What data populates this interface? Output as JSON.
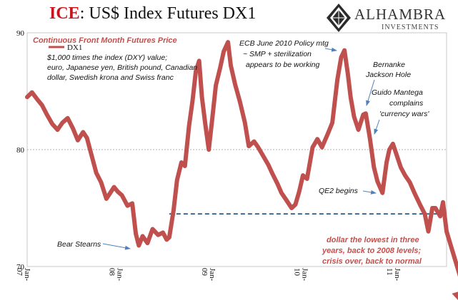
{
  "header": {
    "title_accent": "ICE",
    "title_rest": ": US$ Index Futures DX1",
    "logo_name": "ALHAMBRA",
    "logo_sub": "INVESTMENTS"
  },
  "colors": {
    "series": "#c0504d",
    "accent_red": "#c8141c",
    "reference_line": "#1f4e79"
  },
  "chart_data": {
    "type": "line",
    "subtitle": "Continuous Front Month Futures Price",
    "description": [
      "$1,000 times the index (DXY) value;",
      "euro, Japanese yen, British pound, Canadian",
      "dollar, Swedish krona and Swiss franc"
    ],
    "legend": "DX1",
    "ylim": [
      70,
      90
    ],
    "yticks": [
      70,
      80,
      90
    ],
    "x_range": [
      "2007-01-01",
      "2011-07-15"
    ],
    "xticks": [
      "Jan-07",
      "Jan-08",
      "Jan-09",
      "Jan-10",
      "Jan-11"
    ],
    "grid_y": [
      80
    ],
    "series": [
      {
        "name": "DX1",
        "x": [
          "2007-01-01",
          "2007-01-20",
          "2007-02-10",
          "2007-03-01",
          "2007-03-20",
          "2007-04-10",
          "2007-05-01",
          "2007-05-20",
          "2007-06-10",
          "2007-07-01",
          "2007-07-20",
          "2007-08-10",
          "2007-08-25",
          "2007-09-15",
          "2007-10-01",
          "2007-10-20",
          "2007-11-10",
          "2007-11-25",
          "2007-12-10",
          "2007-12-25",
          "2008-01-10",
          "2008-02-01",
          "2008-02-20",
          "2008-03-05",
          "2008-03-17",
          "2008-04-01",
          "2008-04-20",
          "2008-05-10",
          "2008-06-01",
          "2008-06-20",
          "2008-07-05",
          "2008-07-15",
          "2008-08-01",
          "2008-08-15",
          "2008-09-01",
          "2008-09-15",
          "2008-10-01",
          "2008-10-15",
          "2008-10-28",
          "2008-11-10",
          "2008-11-21",
          "2008-12-05",
          "2008-12-18",
          "2008-12-31",
          "2009-01-15",
          "2009-02-01",
          "2009-02-15",
          "2009-03-04",
          "2009-03-15",
          "2009-04-01",
          "2009-04-20",
          "2009-05-10",
          "2009-05-25",
          "2009-06-15",
          "2009-07-01",
          "2009-07-20",
          "2009-08-10",
          "2009-08-25",
          "2009-09-15",
          "2009-10-01",
          "2009-10-20",
          "2009-11-10",
          "2009-11-25",
          "2009-12-10",
          "2009-12-25",
          "2010-01-10",
          "2010-02-01",
          "2010-02-20",
          "2010-03-10",
          "2010-04-01",
          "2010-04-20",
          "2010-05-10",
          "2010-05-25",
          "2010-06-07",
          "2010-06-20",
          "2010-07-01",
          "2010-07-15",
          "2010-08-01",
          "2010-08-20",
          "2010-08-30",
          "2010-09-15",
          "2010-10-01",
          "2010-10-15",
          "2010-11-04",
          "2010-11-20",
          "2010-12-01",
          "2010-12-15",
          "2011-01-01",
          "2011-01-15",
          "2011-02-01",
          "2011-02-20",
          "2011-03-10",
          "2011-04-01",
          "2011-04-20",
          "2011-05-04",
          "2011-05-20",
          "2011-06-01",
          "2011-06-20",
          "2011-07-01",
          "2011-07-15"
        ],
        "y": [
          84.5,
          84.9,
          84.3,
          83.8,
          83.0,
          82.2,
          81.7,
          82.3,
          82.7,
          81.8,
          80.8,
          81.5,
          81.0,
          79.3,
          78.0,
          77.2,
          75.8,
          76.3,
          76.8,
          76.4,
          76.1,
          75.2,
          75.4,
          72.8,
          71.8,
          72.6,
          72.0,
          73.2,
          72.7,
          72.9,
          72.3,
          72.5,
          74.8,
          77.4,
          78.9,
          78.6,
          82.0,
          84.2,
          86.7,
          87.6,
          84.5,
          82.1,
          80.0,
          82.5,
          85.5,
          87.0,
          88.4,
          89.2,
          87.2,
          85.6,
          84.1,
          82.3,
          80.3,
          80.7,
          80.2,
          79.5,
          78.7,
          78.0,
          77.1,
          76.3,
          75.7,
          75.0,
          75.3,
          76.4,
          77.8,
          77.5,
          80.2,
          80.9,
          80.2,
          81.3,
          82.3,
          86.0,
          87.9,
          88.5,
          86.5,
          84.5,
          82.8,
          81.7,
          83.0,
          83.1,
          81.0,
          78.5,
          77.3,
          76.3,
          78.9,
          80.0,
          80.5,
          79.4,
          78.5,
          77.8,
          77.2,
          76.3,
          75.3,
          74.5,
          73.0,
          75.0,
          75.0,
          74.3,
          75.5,
          73.0
        ]
      }
    ],
    "reference_line": {
      "value": 74.5,
      "x_start": "2008-07-15",
      "x_end": "2011-07-05"
    },
    "trend_arrow": {
      "x": [
        "2011-07-15",
        "2011-10-12"
      ],
      "y": [
        73.0,
        66.6
      ]
    },
    "annotations": [
      {
        "lines": [
          "ECB June 2010 Policy mtg",
          "~ SMP + sterilization",
          "appears to be working"
        ],
        "x": "2010-06-07",
        "y": 88.5
      },
      {
        "lines": [
          "Bernanke",
          "Jackson Hole"
        ],
        "x": "2010-08-30",
        "y": 83.1
      },
      {
        "lines": [
          "Guido Mantega",
          "complains",
          "'currency wars'"
        ],
        "x": "2010-09-27",
        "y": 81.8
      },
      {
        "lines": [
          "QE2 begins"
        ],
        "x": "2010-11-04",
        "y": 76.3
      },
      {
        "lines": [
          "Bear Stearns"
        ],
        "x": "2008-03-17",
        "y": 71.6
      }
    ],
    "callout": [
      "dollar the lowest in three",
      "years, back to 2008 levels;",
      "crisis over, back to normal"
    ]
  }
}
